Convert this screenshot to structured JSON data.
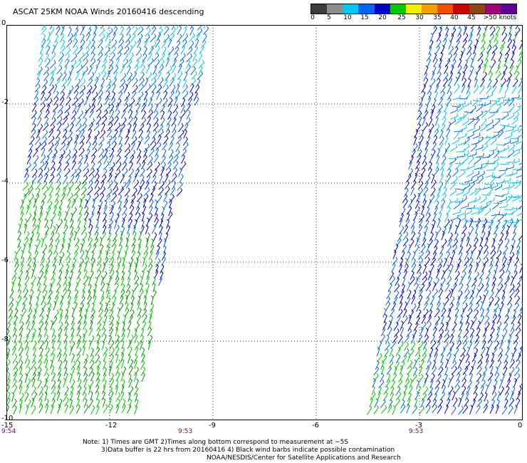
{
  "title": "ASCAT 25KM NOAA Winds 20160416 descending",
  "colorbar": {
    "colors": [
      "#3c3c3c",
      "#8c8c8c",
      "#00c8f0",
      "#0064f0",
      "#0000c8",
      "#00c800",
      "#f0f000",
      "#f0a000",
      "#f05000",
      "#c80000",
      "#8c4614",
      "#a0007a",
      "#5a0096"
    ],
    "labels": [
      "0",
      "5",
      "10",
      "15",
      "20",
      "25",
      "30",
      "35",
      "40",
      "45",
      ">50 knots"
    ]
  },
  "axes": {
    "x_ticks": [
      "-15",
      "-12",
      "-9",
      "-6",
      "-3",
      "0"
    ],
    "y_ticks": [
      "0",
      "-2",
      "-4",
      "-6",
      "-8",
      "-10"
    ],
    "xlim": [
      -15,
      0
    ],
    "ylim": [
      -10,
      0
    ]
  },
  "swath_times": [
    "9:54",
    "9:53",
    "9:53"
  ],
  "notes": [
    "Note: 1) Times are GMT 2)Times along bottom correspond to measurement at −5S",
    "3)Data buffer is 22 hrs from 20160416 4) Black wind barbs indicate possible contamination",
    "NOAA/NESDIS/Center for Satellite Applications and Research"
  ]
}
